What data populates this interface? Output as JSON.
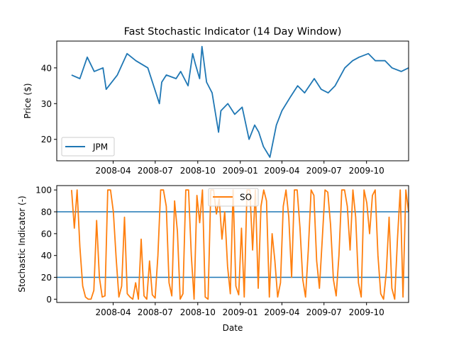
{
  "chart_data": {
    "title": "Fast Stochastic Indicator (14 Day Window)",
    "x_tick_labels": [
      "2008-04",
      "2008-07",
      "2008-10",
      "2009-01",
      "2009-04",
      "2009-07",
      "2009-10"
    ],
    "xlabel": "Date",
    "panels": [
      {
        "type": "line",
        "ylabel": "Price ($)",
        "ylim": [
          14,
          47.5
        ],
        "y_ticks": [
          20,
          30,
          40
        ],
        "legend": "lower-left",
        "series": [
          {
            "name": "JPM",
            "color": "#1f77b4",
            "x": [
              "2008-01-02",
              "2008-01-20",
              "2008-02-05",
              "2008-02-20",
              "2008-03-10",
              "2008-03-17",
              "2008-04-10",
              "2008-05-01",
              "2008-05-20",
              "2008-06-15",
              "2008-07-10",
              "2008-07-15",
              "2008-07-25",
              "2008-08-15",
              "2008-08-25",
              "2008-09-10",
              "2008-09-20",
              "2008-09-26",
              "2008-10-05",
              "2008-10-10",
              "2008-10-20",
              "2008-11-01",
              "2008-11-15",
              "2008-11-20",
              "2008-12-05",
              "2008-12-20",
              "2009-01-05",
              "2009-01-20",
              "2009-02-01",
              "2009-02-10",
              "2009-02-20",
              "2009-03-06",
              "2009-03-20",
              "2009-04-01",
              "2009-04-20",
              "2009-05-05",
              "2009-05-20",
              "2009-06-10",
              "2009-06-25",
              "2009-07-10",
              "2009-07-25",
              "2009-08-15",
              "2009-09-01",
              "2009-09-15",
              "2009-10-05",
              "2009-10-20",
              "2009-11-10",
              "2009-11-25",
              "2009-12-15",
              "2009-12-31"
            ],
            "values": [
              38,
              37,
              43,
              39,
              40,
              34,
              38,
              44,
              42,
              40,
              30,
              36,
              38,
              37,
              39,
              35,
              44,
              41,
              37,
              46,
              36,
              33,
              22,
              28,
              30,
              27,
              29,
              20,
              24,
              22,
              18,
              15,
              24,
              28,
              32,
              35,
              33,
              37,
              34,
              33,
              35,
              40,
              42,
              43,
              44,
              42,
              42,
              40,
              39,
              40
            ]
          }
        ]
      },
      {
        "type": "line",
        "ylabel": "Stochastic Indicator (-)",
        "ylim": [
          -3,
          104
        ],
        "y_ticks": [
          0,
          20,
          40,
          60,
          80,
          100
        ],
        "legend": "upper-center",
        "series": [
          {
            "name": "SO",
            "color": "#ff7f0e",
            "x_start": "2008-01-02",
            "x_end": "2009-12-31",
            "values": [
              100,
              65,
              100,
              48,
              12,
              2,
              0,
              0,
              8,
              72,
              20,
              2,
              3,
              100,
              100,
              80,
              38,
              2,
              12,
              75,
              5,
              2,
              0,
              15,
              0,
              55,
              3,
              0,
              35,
              4,
              1,
              40,
              100,
              100,
              85,
              15,
              3,
              90,
              62,
              0,
              5,
              100,
              100,
              40,
              0,
              95,
              70,
              100,
              2,
              0,
              100,
              100,
              78,
              92,
              55,
              80,
              30,
              5,
              100,
              12,
              4,
              65,
              2,
              100,
              100,
              45,
              100,
              10,
              85,
              100,
              90,
              2,
              60,
              35,
              2,
              15,
              85,
              100,
              75,
              20,
              100,
              100,
              65,
              18,
              2,
              45,
              100,
              95,
              35,
              10,
              55,
              100,
              98,
              68,
              18,
              3,
              40,
              100,
              100,
              85,
              45,
              100,
              75,
              15,
              2,
              100,
              88,
              60,
              95,
              100,
              40,
              5,
              0,
              25,
              75,
              10,
              0,
              55,
              100,
              2,
              100,
              80
            ]
          }
        ],
        "hlines": [
          {
            "value": 80,
            "color": "#1f77b4"
          },
          {
            "value": 20,
            "color": "#1f77b4"
          }
        ]
      }
    ]
  }
}
